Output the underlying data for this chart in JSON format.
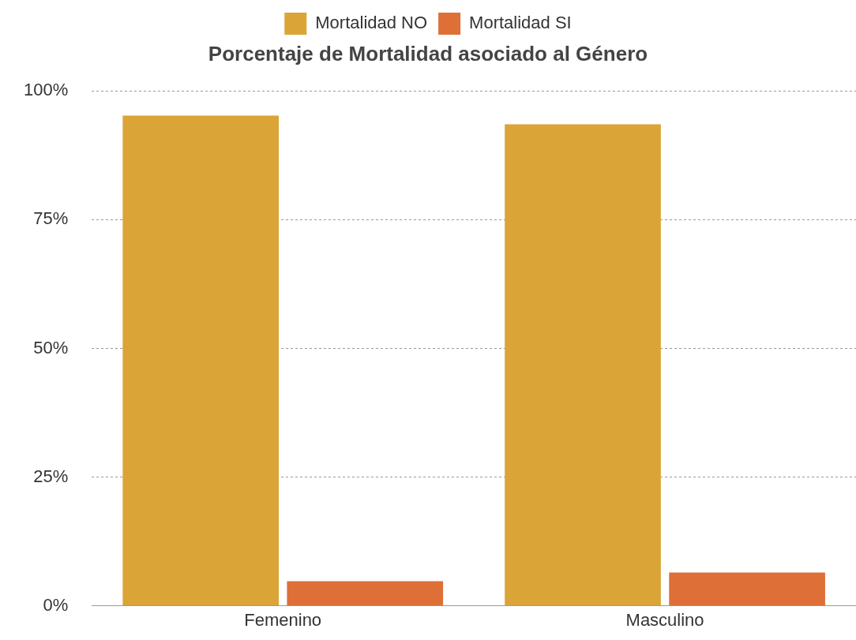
{
  "chart_data": {
    "type": "bar",
    "title": "Porcentaje de Mortalidad asociado al Género",
    "categories": [
      "Femenino",
      "Masculino"
    ],
    "series": [
      {
        "name": "Mortalidad NO",
        "color": "#dba437",
        "values": [
          95.2,
          93.5
        ]
      },
      {
        "name": "Mortalidad SI",
        "color": "#de6f37",
        "values": [
          4.8,
          6.5
        ]
      }
    ],
    "ylim": [
      0,
      100
    ],
    "yticks": [
      {
        "value": 0,
        "label": "0%"
      },
      {
        "value": 25,
        "label": "25%"
      },
      {
        "value": 50,
        "label": "50%"
      },
      {
        "value": 75,
        "label": "75%"
      },
      {
        "value": 100,
        "label": "100%"
      }
    ],
    "grid": "y",
    "legend": "top"
  }
}
